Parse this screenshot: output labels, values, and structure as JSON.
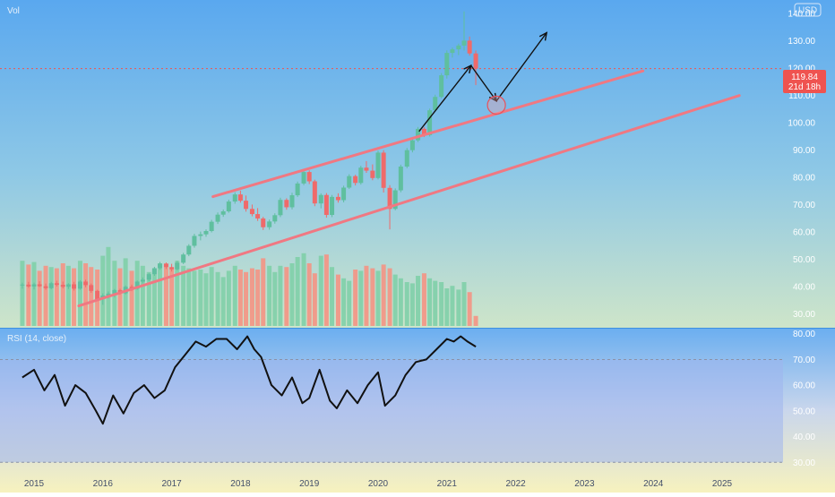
{
  "header": {
    "vol_label": "Vol",
    "currency_badge": "USD"
  },
  "price_badge": {
    "price": "119.84",
    "countdown": "21d 18h"
  },
  "colors": {
    "up": "#5fbf9f",
    "down": "#ef6a6a",
    "vol_up": "#7fcfa8",
    "vol_down": "#f49484",
    "channel": "#f07882",
    "arrows": "#111111",
    "rsi_line": "#111111",
    "rsi_band": "#9fb4ee",
    "price_badge_bg": "#ef5350",
    "bg_top": "#5aa8ef",
    "bg_bottom": "#f8f3b6"
  },
  "chart_data": [
    {
      "type": "candlestick",
      "timeframe": "monthly",
      "ylim": [
        25,
        143
      ],
      "xlim": [
        2014.8,
        2026.2
      ],
      "y_ticks": [
        "140.00",
        "130.00",
        "120.00",
        "110.00",
        "100.00",
        "90.00",
        "80.00",
        "70.00",
        "60.00",
        "50.00",
        "40.00",
        "30.00"
      ],
      "x_ticks": [
        "2015",
        "2016",
        "2017",
        "2018",
        "2019",
        "2020",
        "2021",
        "2022",
        "2023",
        "2024",
        "2025"
      ],
      "last_price": 119.84,
      "candles": [
        [
          2014.83,
          40.5,
          41.5,
          39.3,
          40.8
        ],
        [
          2014.92,
          40.8,
          41.8,
          39.6,
          40.1
        ],
        [
          2015.0,
          40.1,
          41.5,
          39.0,
          40.9
        ],
        [
          2015.08,
          40.9,
          42.0,
          39.9,
          40.2
        ],
        [
          2015.17,
          40.2,
          41.2,
          38.9,
          39.5
        ],
        [
          2015.25,
          39.5,
          41.8,
          39.1,
          41.3
        ],
        [
          2015.33,
          41.3,
          42.2,
          40.1,
          40.7
        ],
        [
          2015.42,
          40.7,
          41.9,
          39.4,
          40.0
        ],
        [
          2015.5,
          40.0,
          41.3,
          39.2,
          40.9
        ],
        [
          2015.58,
          40.9,
          41.8,
          38.6,
          39.3
        ],
        [
          2015.67,
          39.3,
          42.4,
          38.9,
          41.9
        ],
        [
          2015.75,
          41.9,
          42.6,
          39.8,
          40.6
        ],
        [
          2015.83,
          40.6,
          41.2,
          37.8,
          38.5
        ],
        [
          2015.92,
          38.5,
          38.9,
          34.7,
          35.5
        ],
        [
          2016.0,
          35.5,
          37.6,
          33.4,
          36.8
        ],
        [
          2016.08,
          36.8,
          38.3,
          35.7,
          37.5
        ],
        [
          2016.17,
          37.5,
          39.2,
          36.1,
          38.8
        ],
        [
          2016.25,
          38.8,
          39.3,
          37.1,
          37.6
        ],
        [
          2016.33,
          37.6,
          40.5,
          37.2,
          40.0
        ],
        [
          2016.42,
          40.0,
          40.8,
          38.4,
          39.3
        ],
        [
          2016.5,
          39.3,
          42.3,
          38.9,
          41.9
        ],
        [
          2016.58,
          41.9,
          43.4,
          41.2,
          42.6
        ],
        [
          2016.67,
          42.6,
          45.1,
          42.0,
          44.6
        ],
        [
          2016.75,
          44.6,
          47.3,
          44.0,
          46.8
        ],
        [
          2016.83,
          46.8,
          49.1,
          46.2,
          48.5
        ],
        [
          2016.92,
          48.5,
          48.9,
          46.5,
          47.2
        ],
        [
          2017.0,
          47.2,
          48.4,
          45.6,
          46.4
        ],
        [
          2017.08,
          46.4,
          49.5,
          46.0,
          48.8
        ],
        [
          2017.17,
          48.8,
          52.4,
          48.3,
          51.8
        ],
        [
          2017.25,
          51.8,
          55.6,
          51.2,
          55.0
        ],
        [
          2017.33,
          55.0,
          59.4,
          54.3,
          58.6
        ],
        [
          2017.42,
          58.6,
          60.2,
          57.0,
          59.2
        ],
        [
          2017.5,
          59.2,
          61.0,
          58.3,
          60.4
        ],
        [
          2017.58,
          60.4,
          64.5,
          59.9,
          63.8
        ],
        [
          2017.67,
          63.8,
          67.2,
          63.0,
          66.4
        ],
        [
          2017.75,
          66.4,
          68.3,
          65.6,
          67.6
        ],
        [
          2017.83,
          67.6,
          71.9,
          67.1,
          71.2
        ],
        [
          2017.92,
          71.2,
          74.6,
          70.4,
          73.8
        ],
        [
          2018.0,
          73.8,
          75.2,
          70.8,
          71.5
        ],
        [
          2018.08,
          71.5,
          73.4,
          67.5,
          68.5
        ],
        [
          2018.17,
          68.5,
          70.1,
          65.8,
          66.6
        ],
        [
          2018.25,
          66.6,
          68.8,
          64.1,
          65.0
        ],
        [
          2018.33,
          65.0,
          65.6,
          60.8,
          61.8
        ],
        [
          2018.42,
          61.8,
          64.6,
          60.9,
          63.9
        ],
        [
          2018.5,
          63.9,
          66.9,
          63.1,
          66.2
        ],
        [
          2018.58,
          66.2,
          72.6,
          65.5,
          71.8
        ],
        [
          2018.67,
          71.8,
          72.4,
          68.2,
          69.1
        ],
        [
          2018.75,
          69.1,
          74.4,
          68.3,
          73.5
        ],
        [
          2018.83,
          73.5,
          78.5,
          72.9,
          77.8
        ],
        [
          2018.92,
          77.8,
          82.8,
          77.2,
          82.0
        ],
        [
          2019.0,
          82.0,
          82.6,
          77.6,
          78.6
        ],
        [
          2019.08,
          78.6,
          79.2,
          69.5,
          70.5
        ],
        [
          2019.17,
          70.5,
          74.2,
          68.7,
          73.6
        ],
        [
          2019.25,
          73.6,
          74.3,
          65.3,
          66.3
        ],
        [
          2019.33,
          66.3,
          73.6,
          65.5,
          72.9
        ],
        [
          2019.42,
          72.9,
          74.2,
          70.8,
          71.7
        ],
        [
          2019.5,
          71.7,
          77.0,
          70.9,
          76.3
        ],
        [
          2019.58,
          76.3,
          81.2,
          75.8,
          80.5
        ],
        [
          2019.67,
          80.5,
          81.0,
          77.1,
          78.0
        ],
        [
          2019.75,
          78.0,
          84.3,
          77.4,
          83.6
        ],
        [
          2019.83,
          83.6,
          86.0,
          81.7,
          82.5
        ],
        [
          2019.92,
          82.5,
          84.8,
          79.0,
          79.8
        ],
        [
          2020.0,
          79.8,
          89.8,
          79.3,
          89.1
        ],
        [
          2020.08,
          89.1,
          90.0,
          74.5,
          76.2
        ],
        [
          2020.17,
          76.2,
          77.2,
          61.0,
          68.5
        ],
        [
          2020.25,
          68.5,
          76.0,
          68.0,
          75.3
        ],
        [
          2020.33,
          75.3,
          84.7,
          74.6,
          84.0
        ],
        [
          2020.42,
          84.0,
          90.8,
          83.4,
          90.0
        ],
        [
          2020.5,
          90.0,
          94.3,
          89.2,
          93.6
        ],
        [
          2020.58,
          93.6,
          98.5,
          93.0,
          97.8
        ],
        [
          2020.67,
          97.8,
          98.4,
          94.8,
          95.5
        ],
        [
          2020.75,
          95.5,
          105.2,
          95.0,
          104.6
        ],
        [
          2020.83,
          104.6,
          110.3,
          104.0,
          109.5
        ],
        [
          2020.92,
          109.5,
          118.2,
          109.0,
          117.4
        ],
        [
          2021.0,
          117.4,
          126.5,
          116.2,
          125.6
        ],
        [
          2021.08,
          125.6,
          127.6,
          123.9,
          126.9
        ],
        [
          2021.17,
          126.9,
          129.0,
          124.8,
          128.3
        ],
        [
          2021.25,
          128.3,
          140.8,
          126.5,
          130.1
        ],
        [
          2021.33,
          130.1,
          131.6,
          124.6,
          125.4
        ],
        [
          2021.42,
          125.4,
          126.5,
          113.8,
          119.84
        ]
      ],
      "volume": [
        [
          2014.83,
          52,
          1
        ],
        [
          2014.92,
          49,
          0
        ],
        [
          2015.0,
          51,
          1
        ],
        [
          2015.08,
          44,
          0
        ],
        [
          2015.17,
          48,
          0
        ],
        [
          2015.25,
          47,
          1
        ],
        [
          2015.33,
          46,
          0
        ],
        [
          2015.42,
          50,
          0
        ],
        [
          2015.5,
          48,
          1
        ],
        [
          2015.58,
          46,
          0
        ],
        [
          2015.67,
          52,
          1
        ],
        [
          2015.75,
          50,
          0
        ],
        [
          2015.83,
          47,
          0
        ],
        [
          2015.92,
          45,
          0
        ],
        [
          2016.0,
          56,
          1
        ],
        [
          2016.08,
          63,
          1
        ],
        [
          2016.17,
          52,
          1
        ],
        [
          2016.25,
          46,
          0
        ],
        [
          2016.33,
          54,
          1
        ],
        [
          2016.42,
          44,
          0
        ],
        [
          2016.5,
          52,
          1
        ],
        [
          2016.58,
          48,
          1
        ],
        [
          2016.67,
          43,
          1
        ],
        [
          2016.75,
          45,
          1
        ],
        [
          2016.83,
          50,
          1
        ],
        [
          2016.92,
          47,
          0
        ],
        [
          2017.0,
          46,
          0
        ],
        [
          2017.08,
          52,
          1
        ],
        [
          2017.17,
          48,
          1
        ],
        [
          2017.25,
          46,
          1
        ],
        [
          2017.33,
          44,
          1
        ],
        [
          2017.42,
          45,
          1
        ],
        [
          2017.5,
          42,
          1
        ],
        [
          2017.58,
          47,
          1
        ],
        [
          2017.67,
          43,
          1
        ],
        [
          2017.75,
          39,
          1
        ],
        [
          2017.83,
          44,
          1
        ],
        [
          2017.92,
          48,
          1
        ],
        [
          2018.0,
          45,
          0
        ],
        [
          2018.08,
          43,
          0
        ],
        [
          2018.17,
          46,
          0
        ],
        [
          2018.25,
          45,
          0
        ],
        [
          2018.33,
          54,
          0
        ],
        [
          2018.42,
          48,
          1
        ],
        [
          2018.5,
          43,
          1
        ],
        [
          2018.58,
          48,
          1
        ],
        [
          2018.67,
          47,
          0
        ],
        [
          2018.75,
          50,
          1
        ],
        [
          2018.83,
          55,
          1
        ],
        [
          2018.92,
          58,
          1
        ],
        [
          2019.0,
          50,
          0
        ],
        [
          2019.08,
          42,
          0
        ],
        [
          2019.17,
          56,
          1
        ],
        [
          2019.25,
          57,
          0
        ],
        [
          2019.33,
          47,
          1
        ],
        [
          2019.42,
          41,
          0
        ],
        [
          2019.5,
          38,
          1
        ],
        [
          2019.58,
          36,
          1
        ],
        [
          2019.67,
          45,
          0
        ],
        [
          2019.75,
          44,
          1
        ],
        [
          2019.83,
          48,
          0
        ],
        [
          2019.92,
          46,
          0
        ],
        [
          2020.0,
          44,
          1
        ],
        [
          2020.08,
          49,
          0
        ],
        [
          2020.17,
          46,
          0
        ],
        [
          2020.25,
          41,
          1
        ],
        [
          2020.33,
          38,
          1
        ],
        [
          2020.42,
          35,
          1
        ],
        [
          2020.5,
          34,
          1
        ],
        [
          2020.58,
          40,
          1
        ],
        [
          2020.67,
          42,
          0
        ],
        [
          2020.75,
          38,
          1
        ],
        [
          2020.83,
          36,
          1
        ],
        [
          2020.92,
          35,
          1
        ],
        [
          2021.0,
          30,
          1
        ],
        [
          2021.08,
          32,
          1
        ],
        [
          2021.17,
          29,
          1
        ],
        [
          2021.25,
          35,
          1
        ],
        [
          2021.33,
          27,
          0
        ],
        [
          2021.42,
          8,
          0
        ]
      ],
      "annotations": {
        "channel_upper": [
          [
            2017.6,
            73
          ],
          [
            2023.85,
            119
          ]
        ],
        "channel_lower": [
          [
            2015.65,
            33
          ],
          [
            2025.25,
            110
          ]
        ],
        "projection_arrows": [
          [
            [
              2020.6,
              97
            ],
            [
              2021.35,
              121
            ]
          ],
          [
            [
              2021.35,
              121
            ],
            [
              2021.72,
              108
            ]
          ],
          [
            [
              2021.72,
              108
            ],
            [
              2022.45,
              133
            ]
          ]
        ],
        "circle_marker": [
          2021.72,
          106.5
        ]
      }
    },
    {
      "type": "line",
      "title": "RSI (14, close)",
      "ylim": [
        28,
        82
      ],
      "y_ticks": [
        "80.00",
        "70.00",
        "60.00",
        "50.00",
        "40.00",
        "30.00"
      ],
      "band": [
        30,
        70
      ],
      "x": [
        2014.83,
        2015.0,
        2015.15,
        2015.3,
        2015.45,
        2015.6,
        2015.75,
        2015.9,
        2016.0,
        2016.15,
        2016.3,
        2016.45,
        2016.6,
        2016.75,
        2016.9,
        2017.05,
        2017.2,
        2017.35,
        2017.5,
        2017.65,
        2017.8,
        2017.95,
        2018.1,
        2018.2,
        2018.3,
        2018.45,
        2018.6,
        2018.75,
        2018.9,
        2019.0,
        2019.15,
        2019.3,
        2019.4,
        2019.55,
        2019.7,
        2019.85,
        2020.0,
        2020.1,
        2020.25,
        2020.4,
        2020.55,
        2020.7,
        2020.85,
        2021.0,
        2021.1,
        2021.2,
        2021.3,
        2021.42
      ],
      "values": [
        63,
        66,
        58,
        64,
        52,
        60,
        57,
        50,
        45,
        56,
        49,
        57,
        60,
        55,
        58,
        67,
        72,
        77,
        75,
        78,
        78,
        74,
        79,
        74,
        71,
        60,
        56,
        63,
        53,
        55,
        66,
        54,
        51,
        58,
        53,
        60,
        65,
        52,
        56,
        64,
        69,
        70,
        74,
        78,
        77,
        79,
        77,
        75
      ]
    }
  ]
}
